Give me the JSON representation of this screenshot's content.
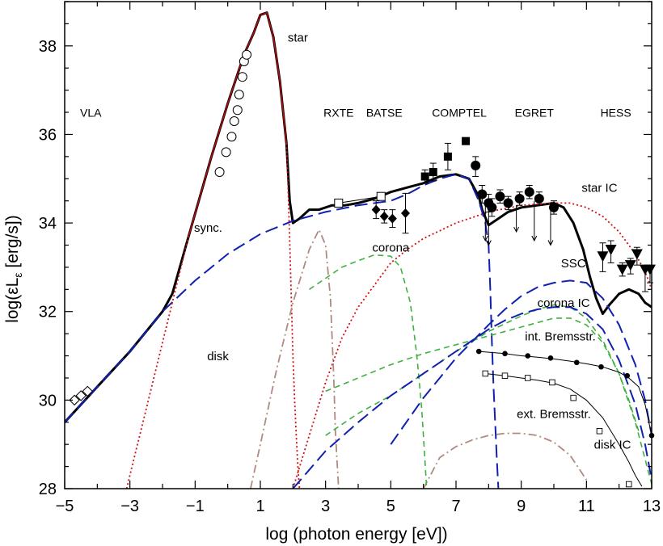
{
  "chart_data": {
    "type": "line",
    "xlabel": "log (photon energy [eV])",
    "ylabel_main": "log(εL",
    "ylabel_sub": "ε",
    "ylabel_tail": " [erg/s])",
    "xlim": [
      -5,
      13
    ],
    "ylim": [
      28,
      39
    ],
    "xticks": [
      -5,
      -3,
      -1,
      1,
      3,
      5,
      7,
      9,
      11,
      13
    ],
    "xtick_labels": [
      "−5",
      "−3",
      "−1",
      "1",
      "3",
      "5",
      "7",
      "9",
      "11",
      "13"
    ],
    "yticks": [
      28,
      30,
      32,
      34,
      36,
      38
    ],
    "ytick_labels": [
      "28",
      "30",
      "32",
      "34",
      "36",
      "38"
    ],
    "band_labels": [
      {
        "text": "VLA",
        "x": -4.2,
        "y": 36.4
      },
      {
        "text": "RXTE",
        "x": 3.4,
        "y": 36.4
      },
      {
        "text": "BATSE",
        "x": 4.8,
        "y": 36.4
      },
      {
        "text": "COMPTEL",
        "x": 7.1,
        "y": 36.4
      },
      {
        "text": "EGRET",
        "x": 9.4,
        "y": 36.4
      },
      {
        "text": "HESS",
        "x": 11.9,
        "y": 36.4
      }
    ],
    "curve_labels": [
      {
        "text": "star",
        "x": 2.15,
        "y": 38.1
      },
      {
        "text": "sync.",
        "x": -0.6,
        "y": 33.8
      },
      {
        "text": "corona",
        "x": 5.0,
        "y": 33.35
      },
      {
        "text": "star IC",
        "x": 11.4,
        "y": 34.7
      },
      {
        "text": "SSC",
        "x": 10.6,
        "y": 33.0
      },
      {
        "text": "corona IC",
        "x": 10.3,
        "y": 32.1
      },
      {
        "text": "disk",
        "x": -0.3,
        "y": 30.9
      },
      {
        "text": "int. Bremsstr.",
        "x": 10.2,
        "y": 31.35
      },
      {
        "text": "ext. Bremsstr.",
        "x": 10.0,
        "y": 29.6
      },
      {
        "text": "disk IC",
        "x": 11.8,
        "y": 28.9
      }
    ],
    "series": [
      {
        "style": "solid-black",
        "color": "#000000",
        "x": [
          -5,
          -4,
          -3,
          -2,
          -1.7,
          -1.2,
          -0.5,
          0,
          0.5,
          0.8,
          1.0,
          1.2,
          1.4,
          1.6,
          1.8,
          1.9,
          2.0,
          2.2,
          2.5,
          2.8,
          3.2,
          3.6,
          4.0,
          4.5,
          5.0,
          5.5,
          6.0,
          6.5,
          7.0,
          7.4,
          7.7,
          7.8,
          8.0,
          8.3,
          8.6,
          9.0,
          9.5,
          10.0,
          10.3,
          10.6,
          10.9,
          11.1,
          11.3,
          11.5,
          11.7,
          12.0,
          12.3,
          12.6,
          12.8,
          13.0
        ],
        "y": [
          29.5,
          30.3,
          31.1,
          32.0,
          32.4,
          33.7,
          35.5,
          36.7,
          37.8,
          38.3,
          38.7,
          38.75,
          38.2,
          37.2,
          35.8,
          34.5,
          34.0,
          34.1,
          34.3,
          34.3,
          34.4,
          34.4,
          34.45,
          34.55,
          34.7,
          34.8,
          34.9,
          35.05,
          35.1,
          35.0,
          34.6,
          34.3,
          33.95,
          34.1,
          34.25,
          34.35,
          34.4,
          34.45,
          34.35,
          34.0,
          33.4,
          32.8,
          32.3,
          31.95,
          32.15,
          32.4,
          32.5,
          32.4,
          32.2,
          32.1
        ]
      },
      {
        "style": "solid-red",
        "color": "#b01010",
        "x": [
          -1.2,
          -0.5,
          0,
          0.5,
          0.8,
          1.0,
          1.2,
          1.4,
          1.6,
          1.8
        ],
        "y": [
          33.7,
          35.5,
          36.7,
          37.8,
          38.3,
          38.7,
          38.75,
          38.2,
          37.2,
          35.8
        ]
      },
      {
        "style": "dash-blue",
        "color": "#1020b0",
        "x": [
          -5,
          -4,
          -3,
          -2,
          -1,
          0,
          1,
          2,
          3,
          4,
          5,
          5.5,
          6,
          6.5,
          7,
          7.4,
          7.7,
          7.9,
          8.0,
          8.05,
          8.1,
          8.15,
          8.2,
          8.25,
          8.3
        ],
        "y": [
          29.5,
          30.3,
          31.1,
          32.0,
          32.7,
          33.3,
          33.75,
          34.05,
          34.25,
          34.4,
          34.5,
          34.65,
          34.85,
          35.0,
          35.1,
          35.0,
          34.5,
          34.0,
          33.5,
          32.5,
          31.3,
          30.3,
          29.5,
          28.7,
          28.0
        ]
      },
      {
        "style": "dot-red",
        "color": "#d01010",
        "x": [
          -3.1,
          -2.6,
          -2.0,
          -1.6,
          -1.3,
          -1.2
        ],
        "y": [
          28.0,
          29.5,
          31.3,
          32.5,
          33.4,
          33.7
        ]
      },
      {
        "style": "dot-red",
        "color": "#d01010",
        "x": [
          1.8,
          1.85,
          1.9,
          1.95,
          2.0,
          2.05,
          2.1,
          2.15,
          2.2
        ],
        "y": [
          35.8,
          34.8,
          33.6,
          32.3,
          31.0,
          30.0,
          29.2,
          28.5,
          28.0
        ]
      },
      {
        "style": "dot-red",
        "color": "#d01010",
        "x": [
          2.0,
          2.5,
          3.0,
          3.5,
          4.0,
          4.5,
          5.0,
          5.5,
          6.0,
          7.0,
          8.0,
          9.0,
          10.0,
          10.5,
          11.0,
          11.5,
          12.0,
          12.5,
          12.8,
          13.0
        ],
        "y": [
          28.0,
          29.2,
          30.4,
          31.4,
          32.1,
          32.6,
          33.1,
          33.4,
          33.65,
          34.0,
          34.25,
          34.4,
          34.45,
          34.45,
          34.35,
          34.15,
          33.8,
          33.3,
          32.9,
          32.5
        ]
      },
      {
        "style": "dashdot-brown",
        "color": "#b08a80",
        "x": [
          0.7,
          1.0,
          1.5,
          2.0,
          2.5,
          2.8,
          3.0,
          3.15,
          3.25,
          3.3,
          3.4
        ],
        "y": [
          28.0,
          29.0,
          30.7,
          32.2,
          33.4,
          33.85,
          33.5,
          32.3,
          30.5,
          29.3,
          28.0
        ]
      },
      {
        "style": "dashdot-brown",
        "color": "#b08a80",
        "x": [
          6.0,
          6.5,
          7.0,
          7.5,
          8.0,
          8.5,
          9.0,
          9.5,
          10.0,
          10.5,
          11.0
        ],
        "y": [
          28.0,
          28.7,
          28.95,
          29.1,
          29.2,
          29.25,
          29.25,
          29.2,
          29.05,
          28.75,
          28.2
        ]
      },
      {
        "style": "dash-green",
        "color": "#40b040",
        "x": [
          2.5,
          3.0,
          3.5,
          4.0,
          4.5,
          5.0,
          5.3,
          5.6,
          5.8,
          5.95,
          6.05,
          6.1
        ],
        "y": [
          32.5,
          32.75,
          33.0,
          33.15,
          33.28,
          33.25,
          33.0,
          32.2,
          31.0,
          29.8,
          28.6,
          28.0
        ]
      },
      {
        "style": "dash-green",
        "color": "#40b040",
        "x": [
          3.0,
          4.0,
          5.0,
          6.0,
          7.0,
          8.0,
          9.0,
          9.5,
          10.0,
          10.5,
          11.0,
          11.5,
          12.0,
          12.3,
          12.6
        ],
        "y": [
          30.2,
          30.5,
          30.8,
          31.05,
          31.25,
          31.45,
          31.65,
          31.75,
          31.85,
          31.85,
          31.7,
          31.3,
          30.6,
          30.0,
          29.3
        ]
      },
      {
        "style": "dash-green",
        "color": "#40b040",
        "x": [
          3.0,
          4.0,
          5.0,
          6.0,
          7.0,
          8.0,
          9.0,
          9.5,
          10.0,
          10.5,
          11.0,
          11.5,
          12.0,
          12.5,
          13.0
        ],
        "y": [
          29.2,
          29.7,
          30.1,
          30.6,
          31.1,
          31.55,
          31.9,
          32.05,
          32.15,
          32.1,
          31.85,
          31.35,
          30.6,
          29.5,
          28.1
        ]
      },
      {
        "style": "dash-blue",
        "color": "#1020b0",
        "x": [
          2.0,
          3.0,
          4.0,
          5.0,
          6.0,
          7.0,
          8.0,
          8.5,
          9.0,
          9.5,
          10.0,
          10.5,
          11.0,
          11.5,
          12.0,
          12.5,
          12.8,
          13.0
        ],
        "y": [
          28.0,
          28.85,
          29.5,
          30.1,
          30.6,
          31.1,
          31.6,
          31.8,
          31.95,
          32.05,
          32.1,
          32.1,
          31.95,
          31.6,
          30.9,
          29.9,
          29.0,
          28.2
        ]
      },
      {
        "style": "dash-blue",
        "color": "#1020b0",
        "x": [
          5.0,
          6.0,
          7.0,
          8.0,
          8.5,
          9.0,
          9.5,
          10.0,
          10.5,
          11.0,
          11.5,
          12.0,
          12.5,
          12.8,
          13.0
        ],
        "y": [
          29.0,
          30.05,
          30.95,
          31.7,
          32.05,
          32.35,
          32.55,
          32.65,
          32.7,
          32.65,
          32.3,
          31.7,
          30.8,
          30.0,
          29.2
        ]
      },
      {
        "style": "thin-black",
        "color": "#000000",
        "x": [
          7.7,
          8.5,
          9.0,
          9.5,
          10.0,
          10.5,
          11.0,
          11.5,
          12.0,
          12.3,
          12.6,
          12.8,
          13.0
        ],
        "y": [
          31.1,
          31.05,
          31.0,
          30.97,
          30.93,
          30.88,
          30.82,
          30.75,
          30.63,
          30.5,
          30.3,
          29.9,
          29.2
        ]
      },
      {
        "style": "thin-black",
        "color": "#000000",
        "x": [
          7.9,
          8.5,
          9.0,
          9.5,
          10.0,
          10.5,
          11.0,
          11.5,
          12.0,
          12.3,
          12.5,
          12.7
        ],
        "y": [
          30.6,
          30.55,
          30.5,
          30.45,
          30.38,
          30.25,
          30.0,
          29.6,
          29.0,
          28.6,
          28.3,
          28.05
        ]
      }
    ],
    "markers": [
      {
        "kind": "open-circle",
        "x": [
          -0.25,
          -0.05,
          0.12,
          0.2,
          0.3,
          0.35,
          0.45,
          0.5,
          0.58
        ],
        "y": [
          35.15,
          35.6,
          35.95,
          36.3,
          36.55,
          36.9,
          37.3,
          37.65,
          37.8
        ]
      },
      {
        "kind": "open-diamond",
        "x": [
          -4.7,
          -4.5,
          -4.3
        ],
        "y": [
          30.0,
          30.1,
          30.2
        ]
      },
      {
        "kind": "open-square",
        "x": [
          3.4,
          4.7
        ],
        "y": [
          34.45,
          34.6
        ],
        "line": true
      },
      {
        "kind": "filled-diamond",
        "x": [
          4.55,
          4.8,
          5.05,
          5.45
        ],
        "y": [
          34.3,
          34.15,
          34.1,
          34.22
        ],
        "err_lo": [
          0.2,
          0.15,
          0.2,
          0.45
        ],
        "err_hi": [
          0.2,
          0.15,
          0.2,
          0.45
        ]
      },
      {
        "kind": "filled-square",
        "x": [
          6.05,
          6.3,
          6.75,
          7.3
        ],
        "y": [
          35.05,
          35.15,
          35.5,
          35.85
        ],
        "err_lo": [
          0.15,
          0.2,
          0.3,
          0.0
        ],
        "err_hi": [
          0.15,
          0.2,
          0.3,
          0.0
        ]
      },
      {
        "kind": "filled-circle",
        "x": [
          7.6,
          7.8,
          8.0,
          8.1,
          8.35,
          8.6,
          8.95,
          9.25,
          9.55,
          10.0
        ],
        "y": [
          35.3,
          34.65,
          34.45,
          34.35,
          34.6,
          34.45,
          34.55,
          34.7,
          34.55,
          34.35
        ],
        "err_lo": [
          0.25,
          0.2,
          0.2,
          0.2,
          0.15,
          0.15,
          0.15,
          0.15,
          0.15,
          0.15
        ],
        "err_hi": [
          0.2,
          0.2,
          0.2,
          0.2,
          0.15,
          0.15,
          0.15,
          0.15,
          0.15,
          0.15
        ]
      },
      {
        "kind": "upper-limit",
        "x": [
          7.9,
          8.0,
          8.85,
          9.4,
          9.9
        ],
        "y": [
          34.5,
          34.3,
          34.4,
          34.5,
          34.35
        ],
        "y_to": [
          33.6,
          33.5,
          33.8,
          33.6,
          33.5
        ]
      },
      {
        "kind": "filled-triangle",
        "x": [
          11.5,
          11.75,
          12.1,
          12.35,
          12.55,
          12.8,
          12.95
        ],
        "y": [
          33.25,
          33.4,
          32.95,
          33.05,
          33.3,
          32.95,
          32.95
        ],
        "err_lo": [
          0.35,
          0.3,
          0.15,
          0.2,
          0.25,
          0.5,
          0.3
        ],
        "err_hi": [
          0.3,
          0.2,
          0.15,
          0.15,
          0.15,
          0.0,
          0.0
        ]
      },
      {
        "kind": "small-filled-circle",
        "x": [
          7.7,
          8.5,
          9.2,
          9.9,
          10.7,
          11.45,
          12.25,
          13.0
        ],
        "y": [
          31.1,
          31.05,
          31.0,
          30.95,
          30.85,
          30.75,
          30.55,
          29.2
        ]
      },
      {
        "kind": "small-open-square",
        "x": [
          7.9,
          8.5,
          9.2,
          9.95,
          10.6,
          11.4,
          12.3
        ],
        "y": [
          30.6,
          30.55,
          30.5,
          30.4,
          30.05,
          29.3,
          28.1
        ]
      }
    ]
  }
}
